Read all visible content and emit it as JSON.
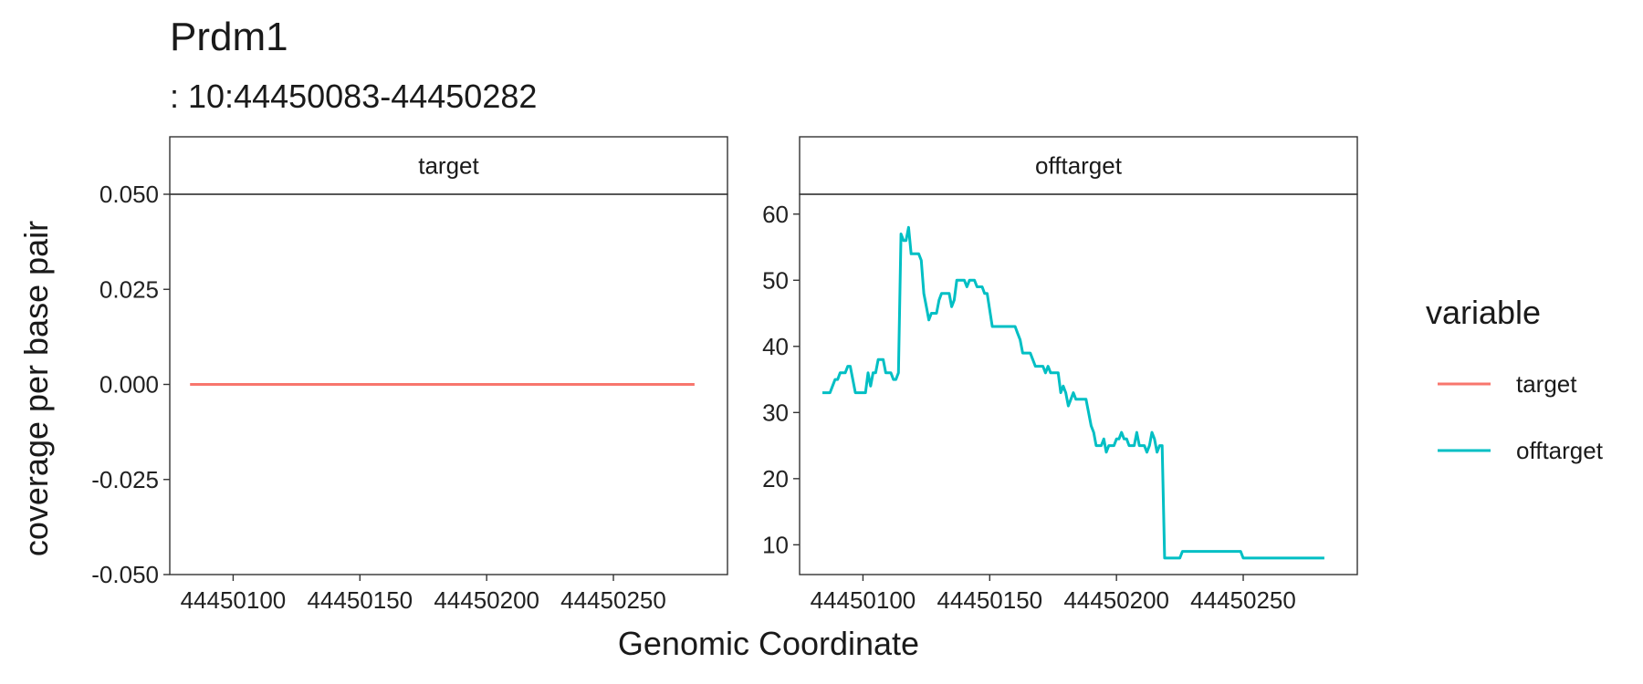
{
  "chart_data": {
    "type": "line",
    "title": "Prdm1",
    "subtitle": ": 10:44450083-44450282",
    "xlabel": "Genomic Coordinate",
    "ylabel": "coverage per base pair",
    "legend": {
      "title": "variable",
      "position": "right",
      "entries": [
        "target",
        "offtarget"
      ]
    },
    "grid": false,
    "facets": [
      {
        "label": "target",
        "series": "target",
        "color": "#F8766D",
        "xlim": [
          44450075,
          44450295
        ],
        "ylim": [
          -0.05,
          0.05
        ],
        "x_ticks": [
          44450100,
          44450150,
          44450200,
          44450250
        ],
        "x_tick_labels": [
          "44450100",
          "44450150",
          "44450200",
          "44450250"
        ],
        "y_ticks": [
          -0.05,
          -0.025,
          0,
          0.025,
          0.05
        ],
        "y_tick_labels": [
          "-0.050",
          "-0.025",
          "0.000",
          "0.025",
          "0.050"
        ],
        "points": [
          [
            44450083,
            0
          ],
          [
            44450282,
            0
          ]
        ]
      },
      {
        "label": "offtarget",
        "series": "offtarget",
        "color": "#00BFC4",
        "xlim": [
          44450075,
          44450295
        ],
        "ylim": [
          5.5,
          63
        ],
        "x_ticks": [
          44450100,
          44450150,
          44450200,
          44450250
        ],
        "x_tick_labels": [
          "44450100",
          "44450150",
          "44450200",
          "44450250"
        ],
        "y_ticks": [
          10,
          20,
          30,
          40,
          50,
          60
        ],
        "y_tick_labels": [
          "10",
          "20",
          "30",
          "40",
          "50",
          "60"
        ],
        "points": [
          [
            44450084,
            33
          ],
          [
            44450087,
            33
          ],
          [
            44450088,
            34
          ],
          [
            44450089,
            35
          ],
          [
            44450090,
            35
          ],
          [
            44450091,
            36
          ],
          [
            44450093,
            36
          ],
          [
            44450094,
            37
          ],
          [
            44450095,
            37
          ],
          [
            44450096,
            35
          ],
          [
            44450097,
            33
          ],
          [
            44450101,
            33
          ],
          [
            44450102,
            36
          ],
          [
            44450103,
            34
          ],
          [
            44450104,
            36
          ],
          [
            44450105,
            36
          ],
          [
            44450106,
            38
          ],
          [
            44450108,
            38
          ],
          [
            44450109,
            36
          ],
          [
            44450111,
            36
          ],
          [
            44450112,
            35
          ],
          [
            44450113,
            35
          ],
          [
            44450114,
            36
          ],
          [
            44450115,
            57
          ],
          [
            44450116,
            56
          ],
          [
            44450117,
            56
          ],
          [
            44450118,
            58
          ],
          [
            44450119,
            54
          ],
          [
            44450122,
            54
          ],
          [
            44450123,
            53
          ],
          [
            44450124,
            48
          ],
          [
            44450125,
            46
          ],
          [
            44450126,
            44
          ],
          [
            44450127,
            45
          ],
          [
            44450129,
            45
          ],
          [
            44450130,
            47
          ],
          [
            44450131,
            48
          ],
          [
            44450134,
            48
          ],
          [
            44450135,
            46
          ],
          [
            44450136,
            47
          ],
          [
            44450137,
            50
          ],
          [
            44450140,
            50
          ],
          [
            44450141,
            49
          ],
          [
            44450142,
            50
          ],
          [
            44450144,
            50
          ],
          [
            44450145,
            49
          ],
          [
            44450147,
            49
          ],
          [
            44450148,
            48
          ],
          [
            44450149,
            48
          ],
          [
            44450151,
            43
          ],
          [
            44450160,
            43
          ],
          [
            44450161,
            42
          ],
          [
            44450162,
            41
          ],
          [
            44450163,
            39
          ],
          [
            44450166,
            39
          ],
          [
            44450167,
            38
          ],
          [
            44450168,
            37
          ],
          [
            44450171,
            37
          ],
          [
            44450172,
            36
          ],
          [
            44450173,
            37
          ],
          [
            44450174,
            36
          ],
          [
            44450177,
            36
          ],
          [
            44450178,
            33
          ],
          [
            44450179,
            34
          ],
          [
            44450180,
            33
          ],
          [
            44450181,
            31
          ],
          [
            44450182,
            32
          ],
          [
            44450183,
            33
          ],
          [
            44450184,
            32
          ],
          [
            44450188,
            32
          ],
          [
            44450189,
            30
          ],
          [
            44450190,
            28
          ],
          [
            44450191,
            27
          ],
          [
            44450192,
            25
          ],
          [
            44450194,
            25
          ],
          [
            44450195,
            26
          ],
          [
            44450196,
            24
          ],
          [
            44450197,
            25
          ],
          [
            44450199,
            25
          ],
          [
            44450200,
            26
          ],
          [
            44450201,
            26
          ],
          [
            44450202,
            27
          ],
          [
            44450203,
            26
          ],
          [
            44450204,
            26
          ],
          [
            44450205,
            25
          ],
          [
            44450207,
            25
          ],
          [
            44450208,
            27
          ],
          [
            44450209,
            25
          ],
          [
            44450211,
            25
          ],
          [
            44450212,
            24
          ],
          [
            44450213,
            25
          ],
          [
            44450214,
            27
          ],
          [
            44450215,
            26
          ],
          [
            44450216,
            24
          ],
          [
            44450217,
            25
          ],
          [
            44450218,
            25
          ],
          [
            44450219,
            8
          ],
          [
            44450225,
            8
          ],
          [
            44450226,
            9
          ],
          [
            44450249,
            9
          ],
          [
            44450250,
            8
          ],
          [
            44450282,
            8
          ]
        ]
      }
    ]
  }
}
